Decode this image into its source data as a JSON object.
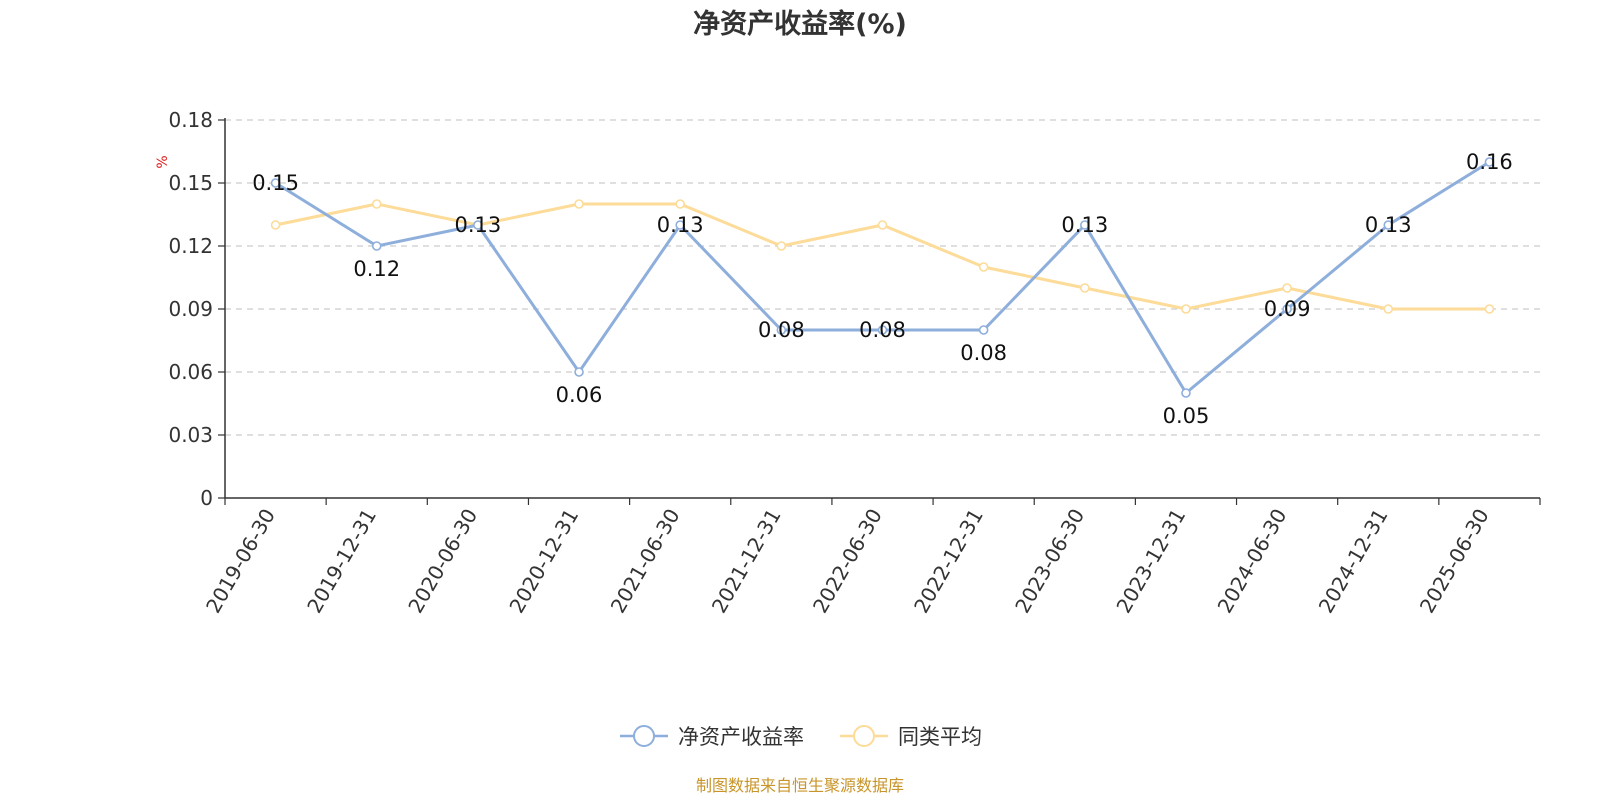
{
  "chart_data": {
    "type": "line",
    "title": "净资产收益率(%)",
    "y_unit": "%",
    "categories": [
      "2019-06-30",
      "2019-12-31",
      "2020-06-30",
      "2020-12-31",
      "2021-06-30",
      "2021-12-31",
      "2022-06-30",
      "2022-12-31",
      "2023-06-30",
      "2023-12-31",
      "2024-06-30",
      "2024-12-31",
      "2025-06-30"
    ],
    "series": [
      {
        "name": "净资产收益率",
        "color": "#8eaedb",
        "show_labels": true,
        "values": [
          0.15,
          0.12,
          0.13,
          0.06,
          0.13,
          0.08,
          0.08,
          0.08,
          0.13,
          0.05,
          0.09,
          0.13,
          0.16
        ]
      },
      {
        "name": "同类平均",
        "color": "#fddb98",
        "show_labels": false,
        "values": [
          0.13,
          0.14,
          0.13,
          0.14,
          0.14,
          0.12,
          0.13,
          0.11,
          0.1,
          0.09,
          0.1,
          0.09,
          0.09
        ]
      }
    ],
    "ylim": [
      0,
      0.18
    ],
    "yticks": [
      "0",
      "0.03",
      "0.06",
      "0.09",
      "0.12",
      "0.15",
      "0.18"
    ],
    "grid": true,
    "legend_position": "bottom"
  },
  "footer": {
    "source": "制图数据来自恒生聚源数据库"
  }
}
